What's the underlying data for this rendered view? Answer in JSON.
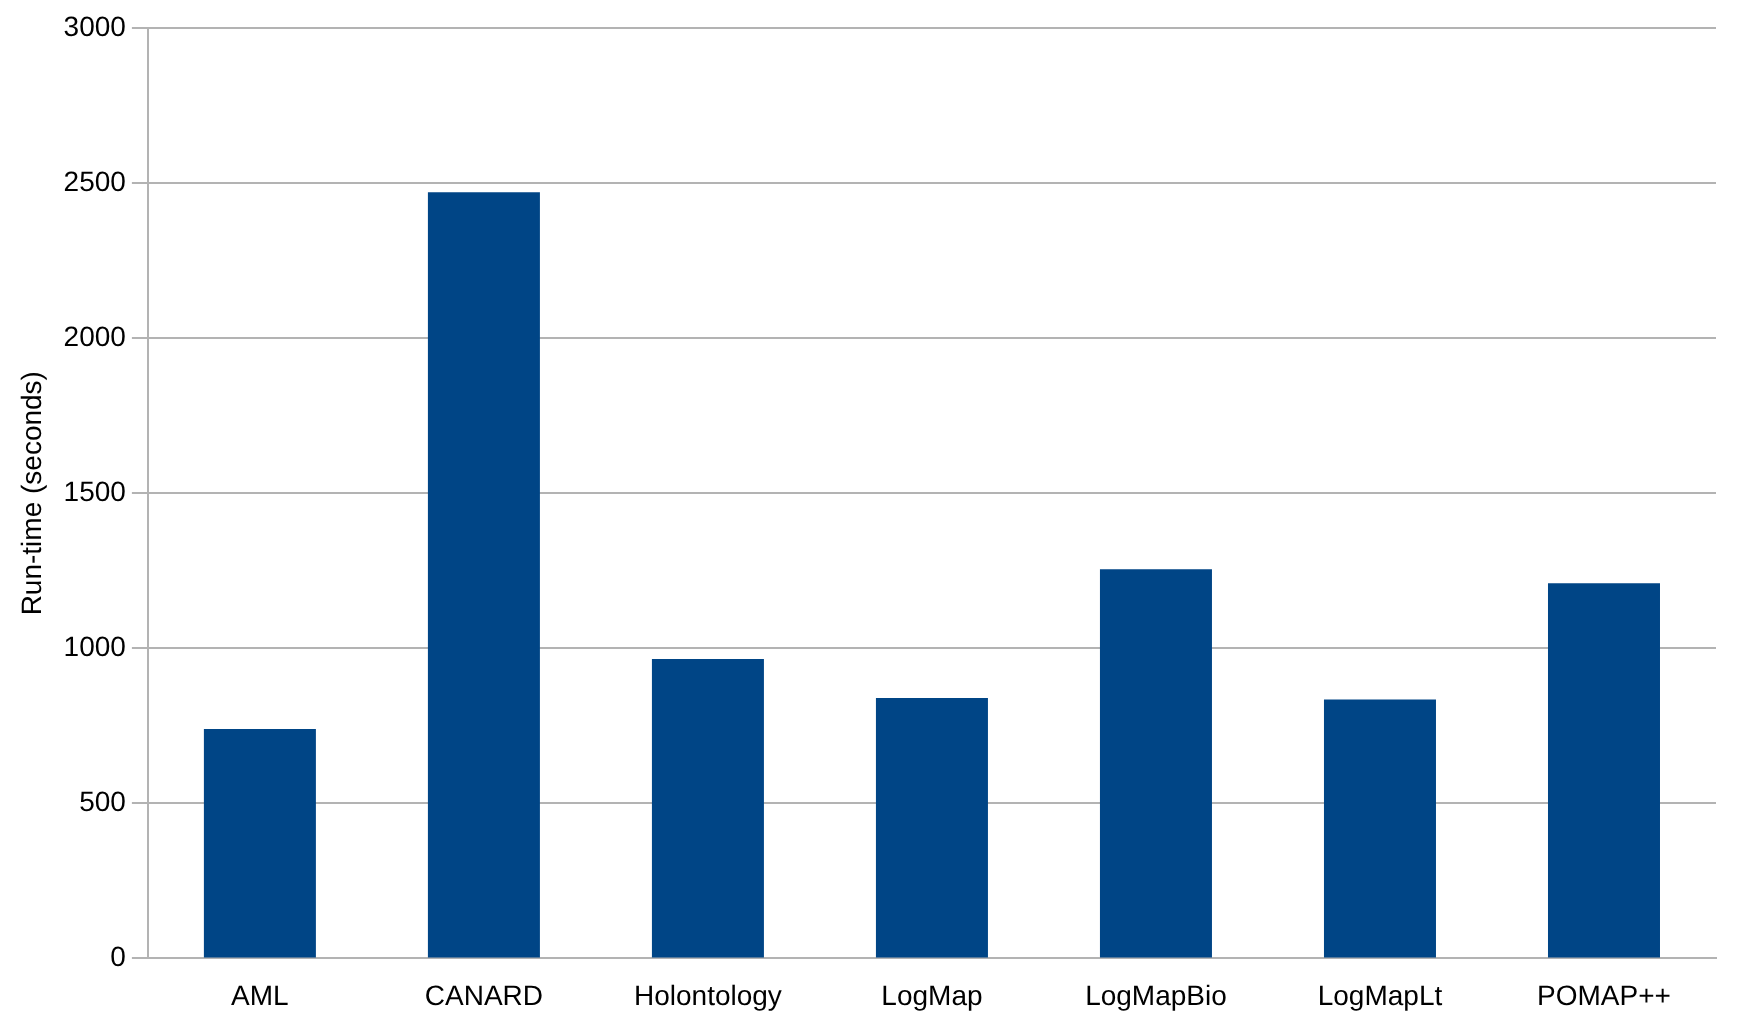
{
  "chart_data": {
    "type": "bar",
    "ylabel": "Run-time (seconds)",
    "categories": [
      "AML",
      "CANARD",
      "Holontology",
      "LogMap",
      "LogMapBio",
      "LogMapLt",
      "POMAP++"
    ],
    "values": [
      740,
      2470,
      965,
      840,
      1255,
      835,
      1210
    ],
    "color": "#004586",
    "ylim": [
      0,
      3000
    ],
    "yticks": [
      0,
      500,
      1000,
      1500,
      2000,
      2500,
      3000
    ],
    "grid": "y"
  }
}
